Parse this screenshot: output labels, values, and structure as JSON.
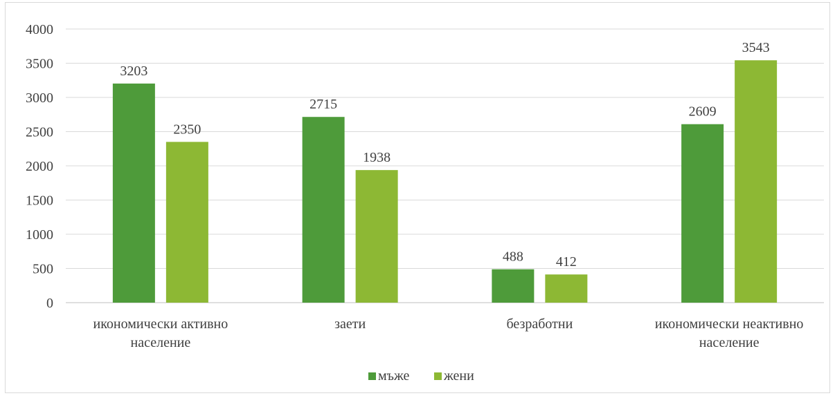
{
  "chart_data": {
    "type": "bar",
    "title": "",
    "xlabel": "",
    "ylabel": "",
    "ylim": [
      0,
      4000
    ],
    "y_ticks": [
      0,
      500,
      1000,
      1500,
      2000,
      2500,
      3000,
      3500,
      4000
    ],
    "grid": true,
    "legend_position": "bottom",
    "categories": [
      [
        "икономически активно",
        "население"
      ],
      [
        "заети"
      ],
      [
        "безработни"
      ],
      [
        "икономически неактивно",
        "население"
      ]
    ],
    "series": [
      {
        "name": "мъже",
        "color": "#4e9b3a",
        "values": [
          3203,
          2715,
          488,
          2609
        ]
      },
      {
        "name": "жени",
        "color": "#8db834",
        "values": [
          2350,
          1938,
          412,
          3543
        ]
      }
    ]
  }
}
